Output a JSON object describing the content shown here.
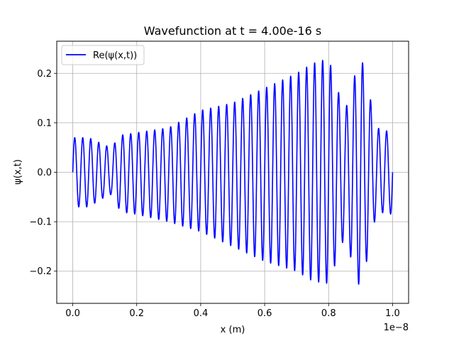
{
  "chart_data": {
    "type": "line",
    "title": "Wavefunction at t = 4.00e-16 s",
    "xlabel": "x (m)",
    "ylabel": "ψ(x,t)",
    "x_offset_label": "1e−8",
    "xlim": [
      -0.05,
      1.05
    ],
    "ylim": [
      -0.265,
      0.265
    ],
    "x_scale_multiplier": 1e-08,
    "x_ticks": [
      0.0,
      0.2,
      0.4,
      0.6,
      0.8,
      1.0
    ],
    "x_tick_labels": [
      "0.0",
      "0.2",
      "0.4",
      "0.6",
      "0.8",
      "1.0"
    ],
    "y_ticks": [
      -0.2,
      -0.1,
      0.0,
      0.1,
      0.2
    ],
    "y_tick_labels": [
      "−0.2",
      "−0.1",
      "0.0",
      "0.1",
      "0.2"
    ],
    "grid": true,
    "legend_position": "top-left",
    "series": [
      {
        "name": "Re(ψ(x,t))",
        "color": "#0000ff",
        "x_range": [
          0.0,
          1.0
        ],
        "oscillation_cycles": 40,
        "envelope": {
          "x": [
            0.0,
            0.05,
            0.1,
            0.12,
            0.15,
            0.2,
            0.3,
            0.4,
            0.5,
            0.6,
            0.7,
            0.75,
            0.8,
            0.85,
            0.9,
            0.95,
            1.0
          ],
          "upper": [
            0.07,
            0.07,
            0.055,
            0.05,
            0.075,
            0.08,
            0.09,
            0.125,
            0.14,
            0.17,
            0.2,
            0.22,
            0.23,
            0.12,
            0.24,
            0.09,
            0.08
          ],
          "lower": [
            -0.07,
            -0.07,
            -0.05,
            -0.045,
            -0.08,
            -0.085,
            -0.1,
            -0.12,
            -0.15,
            -0.18,
            -0.2,
            -0.22,
            -0.225,
            -0.13,
            -0.24,
            -0.08,
            -0.085
          ]
        }
      }
    ]
  }
}
